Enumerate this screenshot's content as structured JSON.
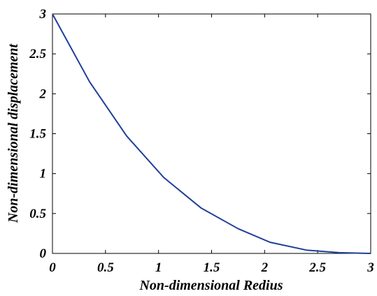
{
  "chart_data": {
    "type": "line",
    "title": "",
    "xlabel": "Non-dimensional Redius",
    "ylabel": "Non-dimensional displacement",
    "xlim": [
      0,
      3
    ],
    "ylim": [
      0,
      3
    ],
    "xticks": [
      "0",
      "0.5",
      "1",
      "1.5",
      "2",
      "2.5",
      "3"
    ],
    "yticks": [
      "0",
      "0.5",
      "1",
      "1.5",
      "2",
      "2.5",
      "3"
    ],
    "grid": false,
    "line_color": "#1f3f9a",
    "series": [
      {
        "x": [
          0.0,
          0.35,
          0.7,
          1.05,
          1.4,
          1.75,
          2.05,
          2.4,
          2.7,
          3.0
        ],
        "y": [
          3.0,
          2.15,
          1.47,
          0.95,
          0.57,
          0.31,
          0.14,
          0.04,
          0.01,
          0.0
        ]
      }
    ]
  }
}
